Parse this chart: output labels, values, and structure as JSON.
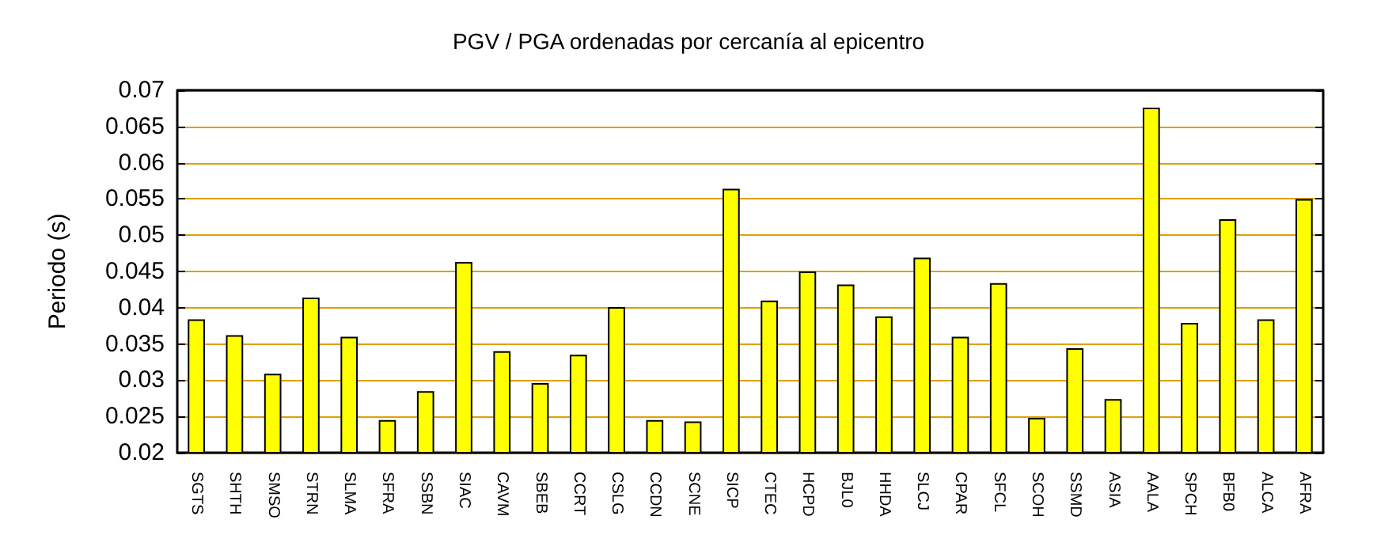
{
  "chart_data": {
    "type": "bar",
    "title": "PGV / PGA ordenadas por cercanía al epicentro",
    "ylabel": "Periodo (s)",
    "categories": [
      "SGTS",
      "SHTH",
      "SMSO",
      "STRN",
      "SLMA",
      "SFRA",
      "SSBN",
      "SIAC",
      "CAVM",
      "SBEB",
      "CCRT",
      "CSLG",
      "CCDN",
      "SCNE",
      "SICP",
      "CTEC",
      "HCPD",
      "BJL0",
      "HHDA",
      "SLCJ",
      "CPAR",
      "SFCL",
      "SCOH",
      "SSMD",
      "ASIA",
      "AALA",
      "SPCH",
      "BFB0",
      "ALCA",
      "AFRA"
    ],
    "values": [
      0.0384,
      0.0362,
      0.0309,
      0.0414,
      0.036,
      0.0245,
      0.0285,
      0.0463,
      0.034,
      0.0296,
      0.0335,
      0.0401,
      0.0245,
      0.0243,
      0.0564,
      0.041,
      0.045,
      0.0432,
      0.0388,
      0.0469,
      0.036,
      0.0434,
      0.0248,
      0.0344,
      0.0274,
      0.0676,
      0.0379,
      0.0522,
      0.0384,
      0.055
    ],
    "color": "#ffff00",
    "ylim": [
      0.02,
      0.07
    ],
    "yticks": [
      0.02,
      0.025,
      0.03,
      0.035,
      0.04,
      0.045,
      0.05,
      0.055,
      0.06,
      0.065,
      0.07
    ],
    "grid": "y"
  }
}
